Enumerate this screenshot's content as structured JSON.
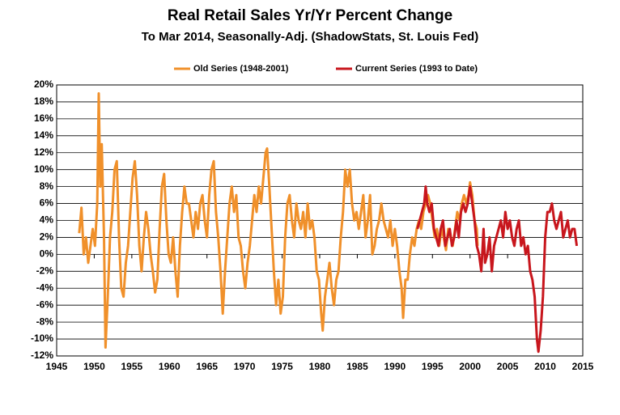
{
  "chart_data": {
    "type": "line",
    "title": "Real Retail Sales Yr/Yr Percent Change",
    "subtitle": "To Mar 2014, Seasonally-Adj. (ShadowStats, St. Louis Fed)",
    "xlim": [
      1945,
      2015
    ],
    "xticks": [
      1945,
      1950,
      1955,
      1960,
      1965,
      1970,
      1975,
      1980,
      1985,
      1990,
      1995,
      2000,
      2005,
      2010,
      2015
    ],
    "ylim": [
      -12,
      20
    ],
    "yticks": [
      {
        "value": -12,
        "label": "-12%"
      },
      {
        "value": -10,
        "label": "-10%"
      },
      {
        "value": -8,
        "label": "-8%"
      },
      {
        "value": -6,
        "label": "-6%"
      },
      {
        "value": -4,
        "label": "-4%"
      },
      {
        "value": -2,
        "label": "-2%"
      },
      {
        "value": 0,
        "label": "0%"
      },
      {
        "value": 2,
        "label": "2%"
      },
      {
        "value": 4,
        "label": "4%"
      },
      {
        "value": 6,
        "label": "6%"
      },
      {
        "value": 8,
        "label": "8%"
      },
      {
        "value": 10,
        "label": "10%"
      },
      {
        "value": 12,
        "label": "12%"
      },
      {
        "value": 14,
        "label": "14%"
      },
      {
        "value": 16,
        "label": "16%"
      },
      {
        "value": 18,
        "label": "18%"
      },
      {
        "value": 20,
        "label": "20%"
      }
    ],
    "grid": true,
    "legend": "top",
    "series": [
      {
        "name": "Old Series (1948-2001)",
        "color": "#f0902a",
        "x": [
          1948.0,
          1948.3,
          1948.6,
          1948.9,
          1949.2,
          1949.5,
          1949.8,
          1950.1,
          1950.4,
          1950.6,
          1950.8,
          1951.0,
          1951.3,
          1951.5,
          1951.8,
          1952.1,
          1952.4,
          1952.7,
          1953.0,
          1953.3,
          1953.6,
          1953.9,
          1954.2,
          1954.5,
          1954.8,
          1955.1,
          1955.4,
          1955.7,
          1956.0,
          1956.3,
          1956.6,
          1956.9,
          1957.2,
          1957.5,
          1957.8,
          1958.1,
          1958.4,
          1958.7,
          1959.0,
          1959.3,
          1959.6,
          1959.9,
          1960.2,
          1960.5,
          1960.8,
          1961.1,
          1961.4,
          1961.7,
          1962.0,
          1962.3,
          1962.6,
          1962.9,
          1963.2,
          1963.5,
          1963.8,
          1964.1,
          1964.4,
          1964.7,
          1965.0,
          1965.3,
          1965.6,
          1965.9,
          1966.2,
          1966.5,
          1966.8,
          1967.1,
          1967.4,
          1967.7,
          1968.0,
          1968.3,
          1968.6,
          1968.9,
          1969.2,
          1969.5,
          1969.8,
          1970.1,
          1970.4,
          1970.7,
          1971.0,
          1971.3,
          1971.6,
          1971.9,
          1972.2,
          1972.5,
          1972.8,
          1973.0,
          1973.3,
          1973.6,
          1973.9,
          1974.2,
          1974.5,
          1974.8,
          1975.1,
          1975.4,
          1975.7,
          1976.0,
          1976.3,
          1976.6,
          1976.9,
          1977.2,
          1977.5,
          1977.8,
          1978.1,
          1978.4,
          1978.7,
          1979.0,
          1979.3,
          1979.6,
          1979.9,
          1980.2,
          1980.4,
          1980.7,
          1981.0,
          1981.3,
          1981.6,
          1981.9,
          1982.2,
          1982.5,
          1982.8,
          1983.1,
          1983.4,
          1983.7,
          1984.0,
          1984.3,
          1984.6,
          1984.9,
          1985.2,
          1985.5,
          1985.8,
          1986.1,
          1986.4,
          1986.7,
          1987.0,
          1987.3,
          1987.6,
          1987.9,
          1988.2,
          1988.5,
          1988.8,
          1989.1,
          1989.4,
          1989.7,
          1990.0,
          1990.3,
          1990.6,
          1990.9,
          1991.1,
          1991.4,
          1991.7,
          1992.0,
          1992.3,
          1992.6,
          1992.9,
          1993.2,
          1993.5,
          1993.8,
          1994.1,
          1994.4,
          1994.7,
          1995.0,
          1995.3,
          1995.6,
          1995.9,
          1996.2,
          1996.5,
          1996.8,
          1997.1,
          1997.4,
          1997.7,
          1998.0,
          1998.3,
          1998.6,
          1998.9,
          1999.2,
          1999.5,
          1999.8,
          2000.0,
          2000.3,
          2000.6,
          2000.9,
          2001.0
        ],
        "values": [
          2.5,
          5.5,
          0,
          2,
          -1,
          1,
          3,
          1,
          6,
          19,
          8,
          13,
          2,
          -11,
          -5,
          2,
          5,
          10,
          11,
          2,
          -4,
          -5,
          -1,
          1,
          5,
          9,
          11,
          7,
          1,
          -2,
          2,
          5,
          3,
          0,
          -2,
          -4.5,
          -3,
          3,
          8,
          9.5,
          4,
          0,
          -1,
          2,
          -2,
          -5,
          1,
          5,
          8,
          6,
          6,
          4,
          2,
          5,
          3,
          6,
          7,
          4,
          2,
          7,
          10,
          11,
          5,
          2,
          -2,
          -7,
          -2,
          2,
          6,
          8,
          5,
          7,
          2,
          1,
          -2,
          -4,
          -1,
          1,
          4,
          7,
          5,
          8,
          6,
          9,
          12,
          12.5,
          8,
          3,
          -2,
          -6,
          -3,
          -7,
          -5,
          2,
          6,
          7,
          4,
          2,
          6,
          4,
          3,
          5,
          2,
          6,
          3,
          4,
          2,
          -2,
          -3,
          -7,
          -9,
          -5,
          -3,
          -1,
          -4,
          -6,
          -3,
          -2,
          2,
          5,
          10,
          8,
          10,
          6,
          4,
          5,
          3,
          5,
          7,
          2,
          4,
          7,
          0,
          1,
          3,
          4,
          6,
          4,
          3,
          2,
          4,
          1,
          3,
          1,
          -2,
          -4,
          -7.5,
          -3,
          -3,
          0,
          2,
          1,
          3,
          4,
          3,
          5,
          6,
          7,
          6,
          4,
          2,
          3,
          1,
          3,
          2,
          0.5,
          3,
          2,
          1,
          3,
          5,
          4,
          6,
          7,
          6,
          7,
          8.5,
          7,
          4,
          3,
          1
        ]
      },
      {
        "name": "Current Series (1993 to Date)",
        "color": "#c8161d",
        "x": [
          1993.0,
          1993.3,
          1993.6,
          1993.9,
          1994.1,
          1994.3,
          1994.6,
          1994.9,
          1995.2,
          1995.5,
          1995.8,
          1996.1,
          1996.4,
          1996.7,
          1997.0,
          1997.3,
          1997.6,
          1997.9,
          1998.2,
          1998.5,
          1998.8,
          1999.1,
          1999.4,
          1999.7,
          2000.0,
          2000.3,
          2000.6,
          2000.9,
          2001.2,
          2001.5,
          2001.8,
          2002.0,
          2002.3,
          2002.6,
          2002.9,
          2003.2,
          2003.5,
          2003.8,
          2004.1,
          2004.4,
          2004.7,
          2005.0,
          2005.3,
          2005.6,
          2005.9,
          2006.2,
          2006.5,
          2006.8,
          2007.1,
          2007.4,
          2007.7,
          2008.0,
          2008.3,
          2008.6,
          2008.9,
          2009.1,
          2009.4,
          2009.7,
          2010.0,
          2010.3,
          2010.6,
          2010.9,
          2011.2,
          2011.5,
          2011.8,
          2012.1,
          2012.4,
          2012.7,
          2013.0,
          2013.3,
          2013.6,
          2013.9,
          2014.2
        ],
        "values": [
          3,
          4,
          5,
          6,
          8,
          6,
          5,
          6,
          3,
          2,
          1,
          3,
          4,
          1,
          2,
          3,
          1,
          2,
          4,
          2,
          5,
          6,
          5,
          6,
          8,
          6,
          4,
          1,
          0,
          -2,
          3,
          -1,
          0,
          2,
          -2,
          1,
          2,
          3,
          4,
          2,
          5,
          3,
          4,
          2,
          1,
          3,
          4,
          1,
          2,
          0,
          1,
          -2,
          -3,
          -5,
          -10,
          -11.5,
          -9,
          -5,
          2,
          5,
          5,
          6,
          4,
          3,
          4,
          5,
          2,
          3,
          4,
          2,
          3,
          3,
          1
        ]
      }
    ]
  }
}
